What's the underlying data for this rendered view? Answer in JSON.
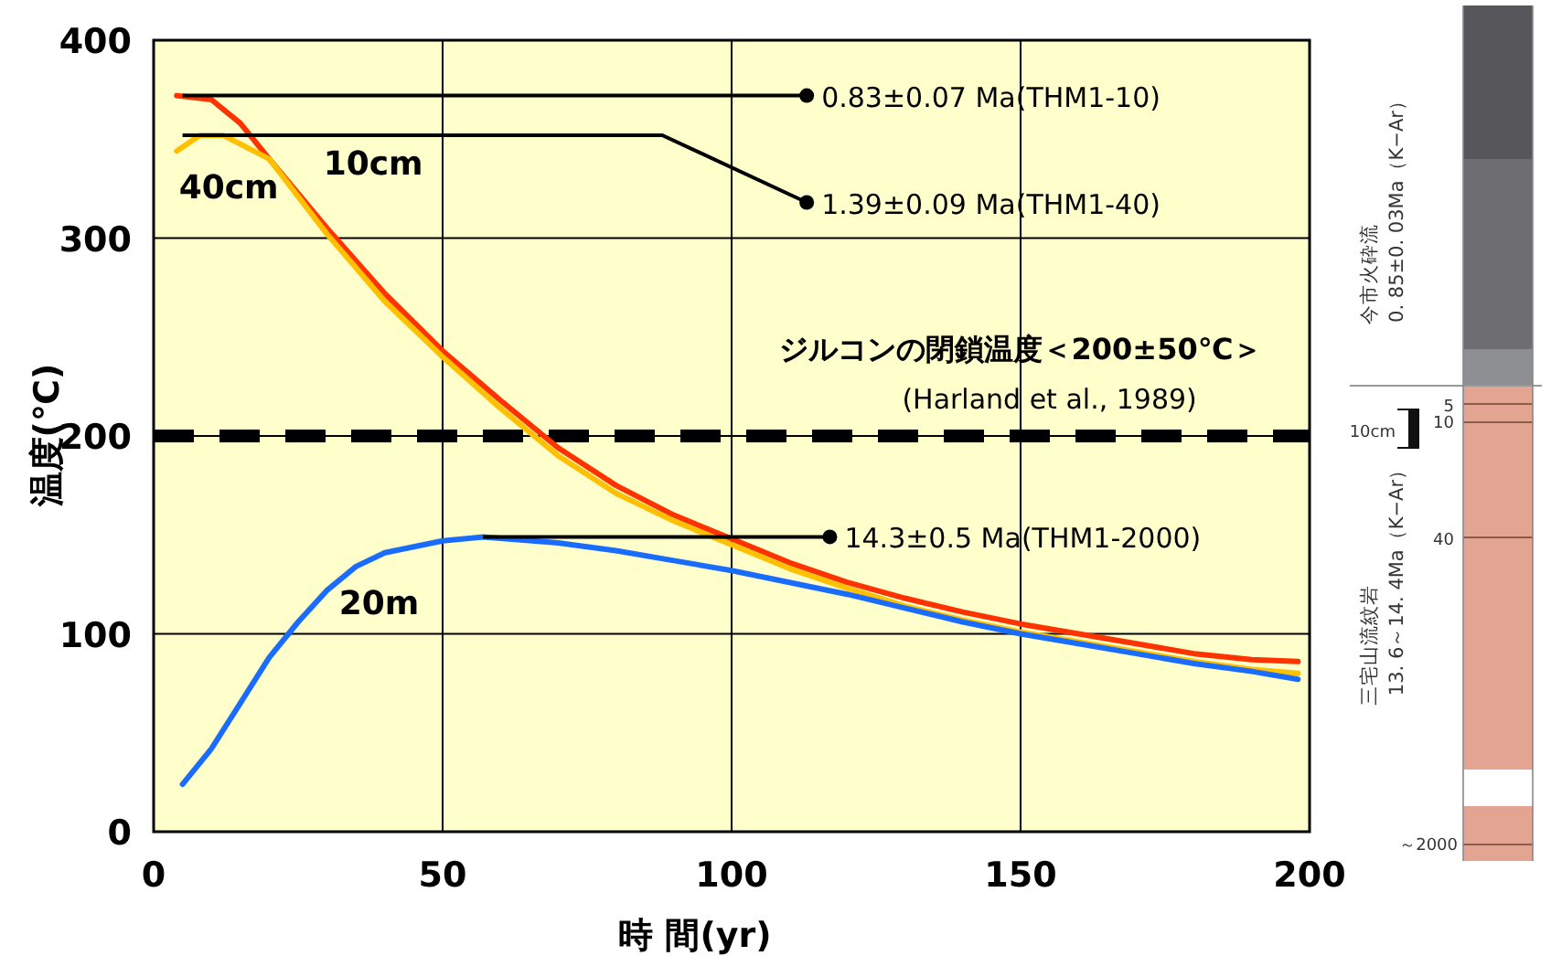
{
  "chart_data": {
    "type": "line",
    "xlabel": "時 間(yr)",
    "ylabel": "温度(℃)",
    "xlim": [
      0,
      200
    ],
    "ylim": [
      0,
      400
    ],
    "xticks": [
      0,
      50,
      100,
      150,
      200
    ],
    "yticks": [
      0,
      100,
      200,
      300,
      400
    ],
    "grid": true,
    "legend": false,
    "series": [
      {
        "name": "10cm",
        "color": "#ff3300",
        "x": [
          4,
          10,
          15,
          20,
          30,
          40,
          50,
          60,
          70,
          80,
          90,
          100,
          110,
          120,
          130,
          140,
          150,
          160,
          170,
          180,
          190,
          198
        ],
        "values": [
          372,
          370,
          358,
          340,
          305,
          272,
          243,
          218,
          194,
          175,
          160,
          148,
          136,
          126,
          118,
          111,
          105,
          100,
          95,
          90,
          87,
          86
        ]
      },
      {
        "name": "40cm",
        "color": "#ffc000",
        "x": [
          4,
          8,
          12,
          20,
          30,
          40,
          50,
          60,
          70,
          80,
          90,
          100,
          110,
          120,
          130,
          140,
          150,
          160,
          170,
          180,
          190,
          198
        ],
        "values": [
          344,
          352,
          352,
          340,
          302,
          268,
          240,
          214,
          190,
          171,
          157,
          145,
          133,
          123,
          114,
          107,
          101,
          96,
          91,
          86,
          82,
          80
        ]
      },
      {
        "name": "20m",
        "color": "#1a6cff",
        "x": [
          5,
          10,
          15,
          20,
          25,
          30,
          35,
          40,
          50,
          57,
          70,
          80,
          90,
          100,
          110,
          120,
          130,
          140,
          150,
          160,
          170,
          180,
          190,
          198
        ],
        "values": [
          24,
          42,
          65,
          88,
          106,
          122,
          134,
          141,
          147,
          149,
          146,
          142,
          137,
          132,
          126,
          120,
          113,
          106,
          100,
          95,
          90,
          85,
          81,
          77
        ]
      }
    ],
    "ref_lines": [
      {
        "axis": "y",
        "value": 200,
        "label": "ジルコンの閉鎖温度＜200±50℃＞",
        "color": "#000000",
        "line_style": "dashed"
      }
    ],
    "annotations": [
      "0.83±0.07 Ma(THM1-10)",
      "1.39±0.09 Ma(THM1-40)",
      "14.3±0.5 Ma(THM1-2000)",
      "(Harland et al., 1989)",
      "今市火砕流",
      "0. 85±0. 03Ma（K−Ar）",
      "三宅山流紋岩",
      "13. 6～14. 4Ma（K−Ar）",
      "5",
      "10",
      "10cm",
      "40",
      "～2000"
    ]
  }
}
